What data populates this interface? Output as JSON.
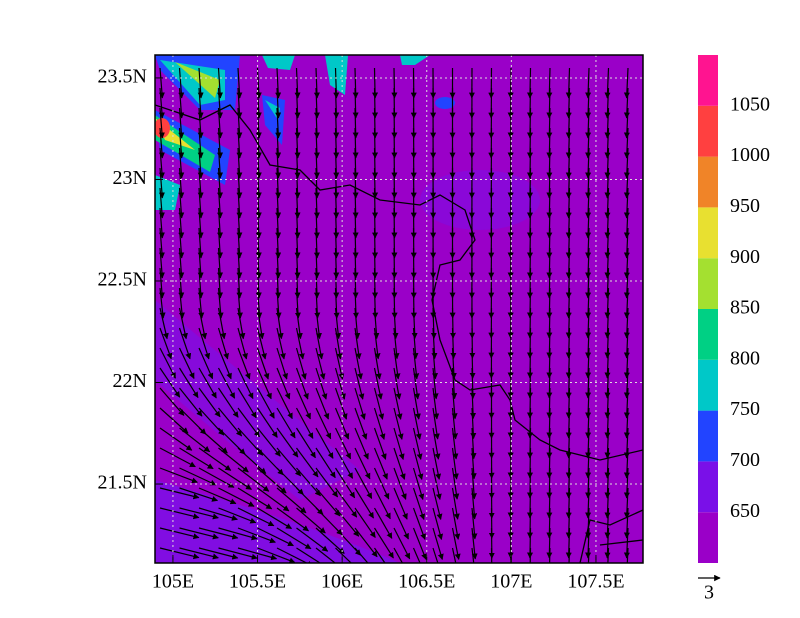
{
  "map": {
    "xlim": [
      104.894,
      107.778
    ],
    "ylim": [
      21.111,
      23.613
    ],
    "xticks": [
      {
        "value": 105,
        "label": "105E"
      },
      {
        "value": 105.5,
        "label": "105.5E"
      },
      {
        "value": 106,
        "label": "106E"
      },
      {
        "value": 106.5,
        "label": "106.5E"
      },
      {
        "value": 107,
        "label": "107E"
      },
      {
        "value": 107.5,
        "label": "107.5E"
      }
    ],
    "yticks": [
      {
        "value": 21.5,
        "label": "21.5N"
      },
      {
        "value": 22,
        "label": "22N"
      },
      {
        "value": 22.5,
        "label": "22.5N"
      },
      {
        "value": 23,
        "label": "23N"
      },
      {
        "value": 23.5,
        "label": "23.5N"
      }
    ],
    "grid": true,
    "colorbar": {
      "levels": [
        650,
        700,
        750,
        800,
        850,
        900,
        950,
        1000,
        1050
      ],
      "colors": [
        "#9a00c8",
        "#7a10e8",
        "#2244ff",
        "#00c8c8",
        "#00d084",
        "#a4e030",
        "#e8e030",
        "#f08428",
        "#ff4040",
        "#ff1490"
      ]
    },
    "reference_vector": {
      "label": "3"
    }
  }
}
